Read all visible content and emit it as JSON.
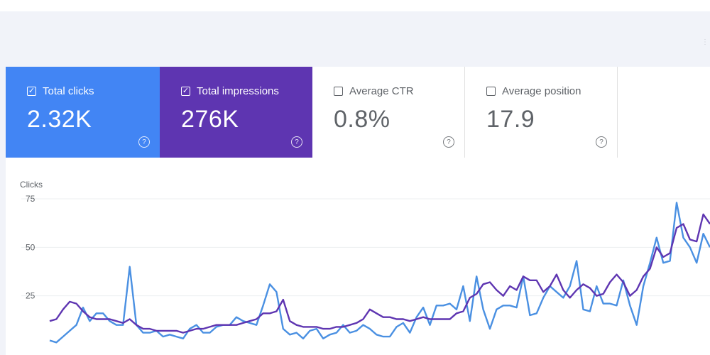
{
  "metrics": [
    {
      "label": "Total clicks",
      "value": "2.32K",
      "checked": true,
      "color": "#4285f4"
    },
    {
      "label": "Total impressions",
      "value": "276K",
      "checked": true,
      "color": "#5e35b1"
    },
    {
      "label": "Average CTR",
      "value": "0.8%",
      "checked": false
    },
    {
      "label": "Average position",
      "value": "17.9",
      "checked": false
    }
  ],
  "help_icon": "?",
  "chart_data": {
    "type": "line",
    "ylabel": "Clicks",
    "yticks": [
      "75",
      "50",
      "25"
    ],
    "ylim": [
      0,
      75
    ],
    "grid": true,
    "series": [
      {
        "color": "#4a90e2",
        "values": [
          2,
          1,
          4,
          7,
          10,
          19,
          12,
          16,
          16,
          12,
          10,
          10,
          40,
          10,
          6,
          6,
          7,
          4,
          5,
          4,
          3,
          8,
          10,
          6,
          6,
          9,
          10,
          10,
          14,
          12,
          11,
          10,
          20,
          31,
          27,
          8,
          5,
          6,
          3,
          7,
          8,
          3,
          5,
          6,
          10,
          6,
          7,
          10,
          8,
          5,
          4,
          4,
          9,
          11,
          6,
          14,
          19,
          10,
          20,
          20,
          21,
          18,
          30,
          12,
          35,
          18,
          8,
          18,
          20,
          20,
          19,
          35,
          15,
          16,
          24,
          30,
          27,
          24,
          30,
          43,
          18,
          17,
          30,
          21,
          21,
          20,
          33,
          20,
          10,
          30,
          42,
          55,
          42,
          43,
          73,
          55,
          50,
          42,
          57,
          50
        ]
      },
      {
        "color": "#5e35b1",
        "values": [
          12,
          13,
          18,
          22,
          21,
          17,
          14,
          13,
          13,
          13,
          12,
          11,
          13,
          10,
          8,
          8,
          7,
          7,
          7,
          7,
          6,
          7,
          8,
          8,
          9,
          10,
          10,
          10,
          10,
          11,
          12,
          13,
          16,
          16,
          17,
          23,
          12,
          10,
          9,
          9,
          9,
          8,
          8,
          9,
          9,
          10,
          11,
          13,
          18,
          16,
          14,
          14,
          13,
          13,
          12,
          13,
          14,
          13,
          13,
          13,
          13,
          16,
          17,
          24,
          26,
          31,
          32,
          28,
          25,
          30,
          28,
          35,
          33,
          33,
          27,
          30,
          36,
          28,
          24,
          28,
          31,
          29,
          25,
          26,
          32,
          36,
          32,
          25,
          28,
          35,
          39,
          50,
          45,
          47,
          60,
          62,
          54,
          53,
          67,
          62
        ]
      }
    ]
  }
}
